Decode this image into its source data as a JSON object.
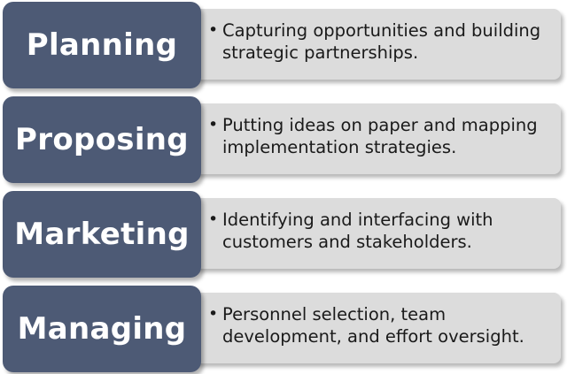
{
  "colors": {
    "stage_fill": "#4d5a75",
    "stage_text": "#ffffff",
    "description_fill": "#dcdcdc",
    "description_text": "#1a1a1a"
  },
  "stages": [
    {
      "label": "Planning",
      "bullet": "•",
      "description_line1": "Capturing opportunities and building",
      "description_line2": "strategic partnerships."
    },
    {
      "label": "Proposing",
      "bullet": "•",
      "description_line1": "Putting ideas on paper and mapping",
      "description_line2": "implementation strategies."
    },
    {
      "label": "Marketing",
      "bullet": "•",
      "description_line1": "Identifying and interfacing with",
      "description_line2": "customers and stakeholders."
    },
    {
      "label": "Managing",
      "bullet": "•",
      "description_line1": "Personnel selection, team",
      "description_line2": "development, and effort oversight."
    }
  ]
}
